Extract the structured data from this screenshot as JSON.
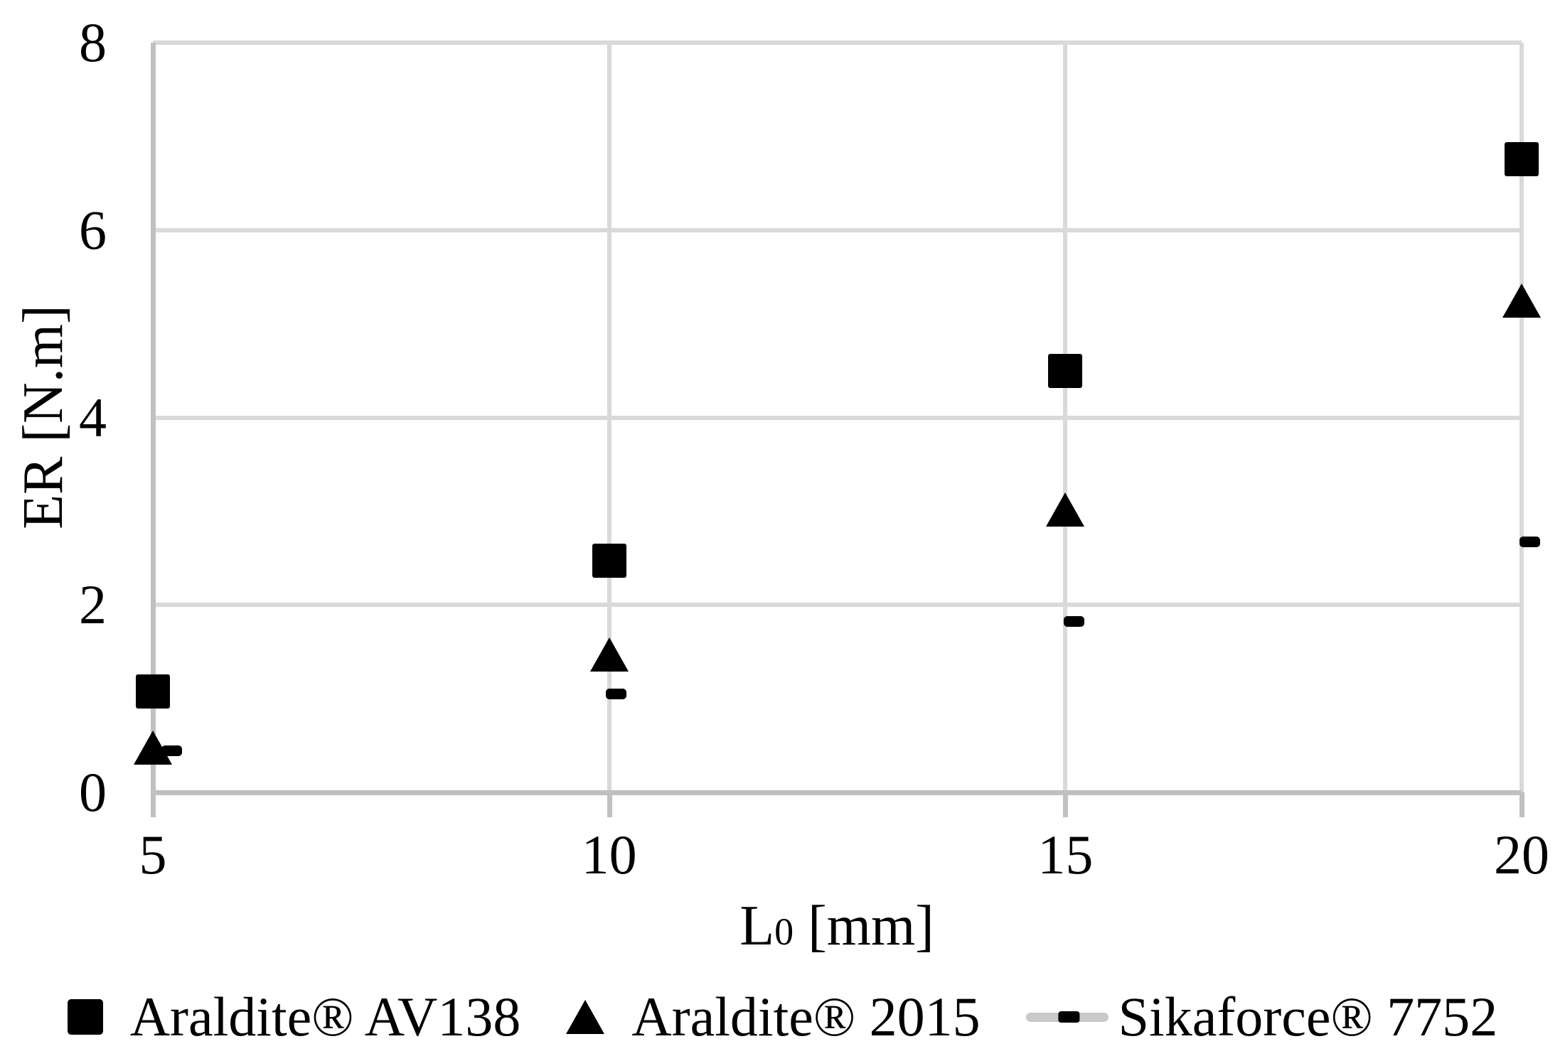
{
  "chart_data": {
    "type": "scatter",
    "x": [
      5,
      10,
      15,
      20
    ],
    "series": [
      {
        "name": "Araldite® AV138",
        "marker": "square",
        "color": "#000000",
        "values": [
          1.08,
          2.47,
          4.5,
          6.76
        ]
      },
      {
        "name": "Araldite® 2015",
        "marker": "triangle",
        "color": "#000000",
        "values": [
          0.48,
          1.47,
          3.02,
          5.25
        ]
      },
      {
        "name": "Sikaforce® 7752",
        "marker": "dash",
        "color": "#000000",
        "legend_line_color": "#c9c9c9",
        "values": [
          0.44,
          1.05,
          1.82,
          2.67
        ]
      }
    ],
    "xlabel": {
      "text": "L",
      "subscript": "0",
      "unit": " [mm]"
    },
    "ylabel": "ER [N.m]",
    "xlim": [
      5,
      20
    ],
    "ylim": [
      0,
      8
    ],
    "xticks": [
      5,
      10,
      15,
      20
    ],
    "yticks": [
      0,
      2,
      4,
      6,
      8
    ],
    "grid": true,
    "legend_position": "bottom",
    "gridline_color": "#d9d9d9",
    "axis_color": "#c0c0c0",
    "background": "#ffffff"
  }
}
